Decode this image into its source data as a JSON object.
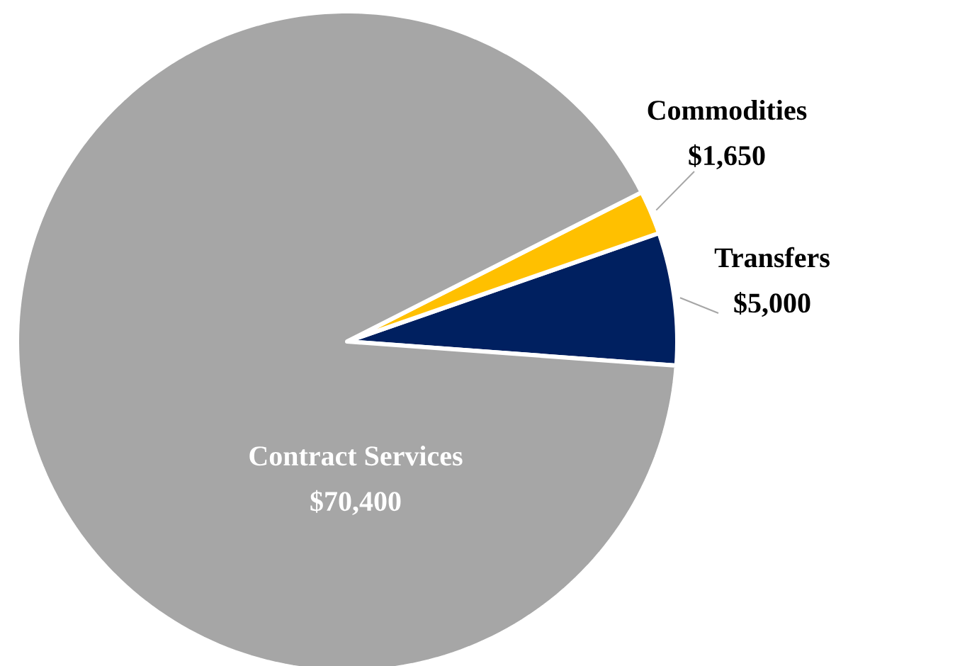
{
  "chart_data": {
    "type": "pie",
    "categories": [
      "Transfers",
      "Commodities",
      "Contract Services"
    ],
    "values": [
      5000,
      1650,
      70400
    ],
    "colors": [
      "#002060",
      "#ffc000",
      "#a6a6a6"
    ],
    "value_labels": [
      "$5,000",
      "$1,650",
      "$70,400"
    ],
    "legend": false
  }
}
